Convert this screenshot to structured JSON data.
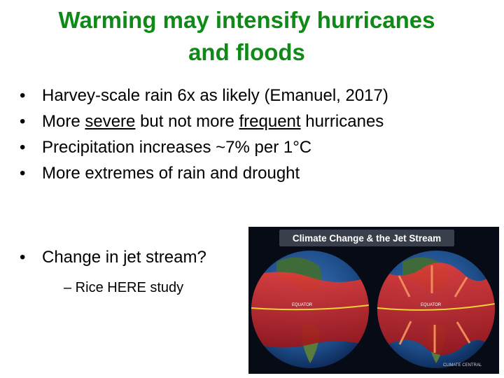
{
  "slide": {
    "title_line1": "Warming may intensify hurricanes",
    "title_line2": "and floods",
    "bullet_char": "•",
    "bullets": [
      {
        "parts": [
          "Harvey-scale rain 6x as likely (Emanuel, 2017)"
        ]
      },
      {
        "parts": [
          "More ",
          "severe",
          " but not more ",
          "frequent",
          " hurricanes"
        ]
      },
      {
        "parts": [
          "Precipitation increases ~7% per 1°C"
        ]
      },
      {
        "parts": [
          "More extremes of rain and drought"
        ]
      }
    ],
    "jet_bullet": "Change in jet stream?",
    "sub_bullet": "– Rice HERE study"
  },
  "figure": {
    "banner": "Climate Change & the Jet Stream",
    "equator_label": "EQUATOR",
    "logo": "CLIMATE CENTRAL",
    "colors": {
      "bg": "#070b16",
      "band": "#d01f25",
      "ocean": "#1c4b86",
      "arrow": "#f08a5a",
      "equator": "#f2d03a"
    }
  }
}
